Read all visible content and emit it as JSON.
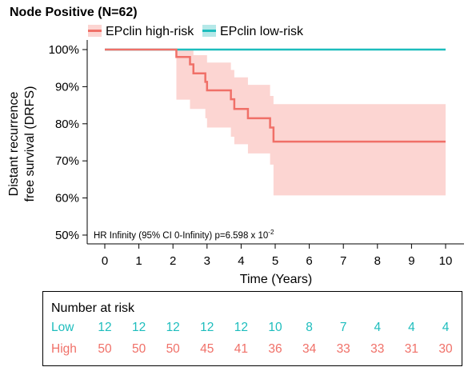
{
  "chart_data": {
    "type": "line",
    "title": "Node Positive (N=62)",
    "xlabel": "Time (Years)",
    "ylabel": [
      "Distant recurrence",
      "free survival (DRFS)"
    ],
    "xlim": [
      0,
      10
    ],
    "ylim": [
      0.5,
      1.0
    ],
    "x_ticks": [
      0,
      1,
      2,
      3,
      4,
      5,
      6,
      7,
      8,
      9,
      10
    ],
    "y_ticks": [
      0.5,
      0.6,
      0.7,
      0.8,
      0.9,
      1.0
    ],
    "y_tick_labels": [
      "50%",
      "60%",
      "70%",
      "80%",
      "90%",
      "100%"
    ],
    "legend_position": "top",
    "colors": {
      "high": "#F07068",
      "low": "#1DBDBD",
      "high_ci": "#FCD5D2",
      "low_ci": "#B5E8E8"
    },
    "series": [
      {
        "name": "EPclin high-risk",
        "step": [
          [
            0,
            1.0
          ],
          [
            2.1,
            1.0
          ],
          [
            2.1,
            0.98
          ],
          [
            2.5,
            0.98
          ],
          [
            2.5,
            0.96
          ],
          [
            2.6,
            0.96
          ],
          [
            2.6,
            0.936
          ],
          [
            2.95,
            0.936
          ],
          [
            2.95,
            0.913
          ],
          [
            3.0,
            0.913
          ],
          [
            3.0,
            0.89
          ],
          [
            3.7,
            0.89
          ],
          [
            3.7,
            0.866
          ],
          [
            3.8,
            0.866
          ],
          [
            3.8,
            0.84
          ],
          [
            4.2,
            0.84
          ],
          [
            4.2,
            0.815
          ],
          [
            4.85,
            0.815
          ],
          [
            4.85,
            0.79
          ],
          [
            4.95,
            0.79
          ],
          [
            4.95,
            0.752
          ],
          [
            10,
            0.752
          ]
        ],
        "ci_upper": [
          [
            0,
            1.0
          ],
          [
            2.1,
            1.0
          ],
          [
            2.6,
            1.0
          ],
          [
            2.6,
            0.985
          ],
          [
            3.0,
            0.985
          ],
          [
            3.0,
            0.965
          ],
          [
            3.7,
            0.965
          ],
          [
            3.7,
            0.945
          ],
          [
            3.8,
            0.945
          ],
          [
            3.8,
            0.925
          ],
          [
            4.2,
            0.925
          ],
          [
            4.2,
            0.905
          ],
          [
            4.85,
            0.905
          ],
          [
            4.85,
            0.875
          ],
          [
            4.95,
            0.875
          ],
          [
            4.95,
            0.853
          ],
          [
            10,
            0.853
          ]
        ],
        "ci_lower": [
          [
            0,
            1.0
          ],
          [
            2.1,
            1.0
          ],
          [
            2.1,
            0.865
          ],
          [
            2.5,
            0.865
          ],
          [
            2.5,
            0.84
          ],
          [
            2.95,
            0.84
          ],
          [
            2.95,
            0.815
          ],
          [
            3.0,
            0.815
          ],
          [
            3.0,
            0.79
          ],
          [
            3.7,
            0.79
          ],
          [
            3.7,
            0.765
          ],
          [
            3.8,
            0.765
          ],
          [
            3.8,
            0.745
          ],
          [
            4.2,
            0.745
          ],
          [
            4.2,
            0.72
          ],
          [
            4.85,
            0.72
          ],
          [
            4.85,
            0.69
          ],
          [
            4.95,
            0.69
          ],
          [
            4.95,
            0.607
          ],
          [
            10,
            0.607
          ]
        ]
      },
      {
        "name": "EPclin low-risk",
        "step": [
          [
            0,
            1.0
          ],
          [
            10,
            1.0
          ]
        ]
      }
    ],
    "annotation": {
      "prefix": "HR Infinity (95% CI 0-Infinity) p=6.598 x 10",
      "superscript": "-2"
    },
    "risk_table": {
      "title": "Number at risk",
      "time_points": [
        0,
        1,
        2,
        3,
        4,
        5,
        6,
        7,
        8,
        9,
        10
      ],
      "rows": [
        {
          "label": "Low",
          "color": "#1DBDBD",
          "values": [
            "12",
            "12",
            "12",
            "12",
            "12",
            "10",
            "8",
            "7",
            "4",
            "4",
            "4"
          ]
        },
        {
          "label": "High",
          "color": "#F07068",
          "values": [
            "50",
            "50",
            "50",
            "45",
            "41",
            "36",
            "34",
            "33",
            "33",
            "31",
            "30"
          ]
        }
      ]
    }
  }
}
